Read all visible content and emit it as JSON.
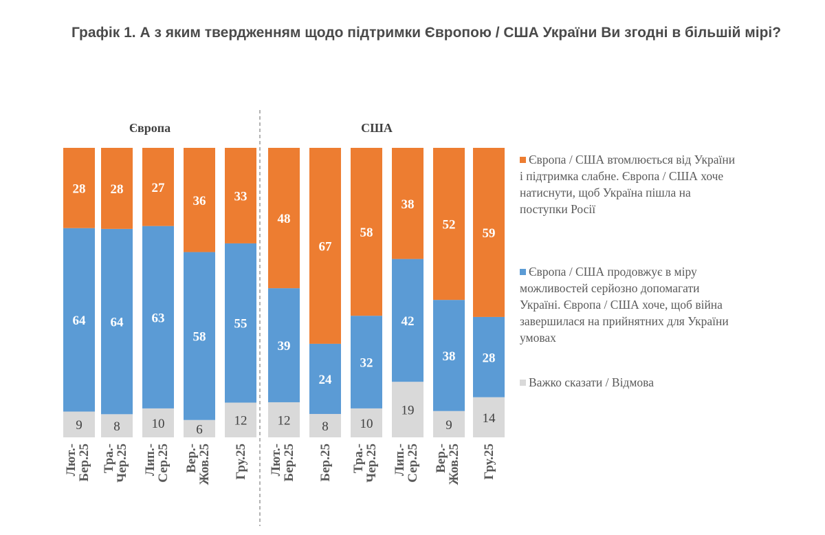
{
  "chart_data": {
    "type": "bar",
    "stacked": true,
    "title": "Графік 1. А з яким твердженням щодо підтримки Європою / США України Ви згодні в більшій мірі?",
    "groups": [
      {
        "label": "Європа",
        "categories": [
          [
            "Лют.-",
            "Бер.25"
          ],
          [
            "Тра.-",
            "Чер.25"
          ],
          [
            "Лип.-",
            "Сер.25"
          ],
          [
            "Вер.-",
            "Жов.25"
          ],
          [
            "",
            "Гру.25"
          ]
        ]
      },
      {
        "label": "США",
        "categories": [
          [
            "Лют.-",
            "Бер.25"
          ],
          [
            "",
            "Бер.25"
          ],
          [
            "Тра.-",
            "Чер.25"
          ],
          [
            "Лип.-",
            "Сер.25"
          ],
          [
            "Вер.-",
            "Жов.25"
          ],
          [
            "",
            "Гру.25"
          ]
        ]
      }
    ],
    "series": [
      {
        "name": "Важко сказати / Відмова",
        "color": "#D9D9D9",
        "values": [
          9,
          8,
          10,
          6,
          12,
          12,
          8,
          10,
          19,
          9,
          14
        ]
      },
      {
        "name": "Європа / США продовжує в міру можливостей серйозно допомагати Україні. Європа / США хоче, щоб війна завершилася на прийнятних для України умовах",
        "color": "#5B9BD5",
        "values": [
          64,
          64,
          63,
          58,
          55,
          39,
          24,
          32,
          42,
          38,
          28
        ]
      },
      {
        "name": "Європа / США втомлюється від України і підтримка слабне. Європа / США хоче натиснути, щоб Україна пішла на поступки Росії",
        "color": "#ED7D31",
        "values": [
          28,
          28,
          27,
          36,
          33,
          48,
          67,
          58,
          38,
          52,
          59
        ]
      }
    ],
    "legend_position": "right",
    "grid": false
  }
}
